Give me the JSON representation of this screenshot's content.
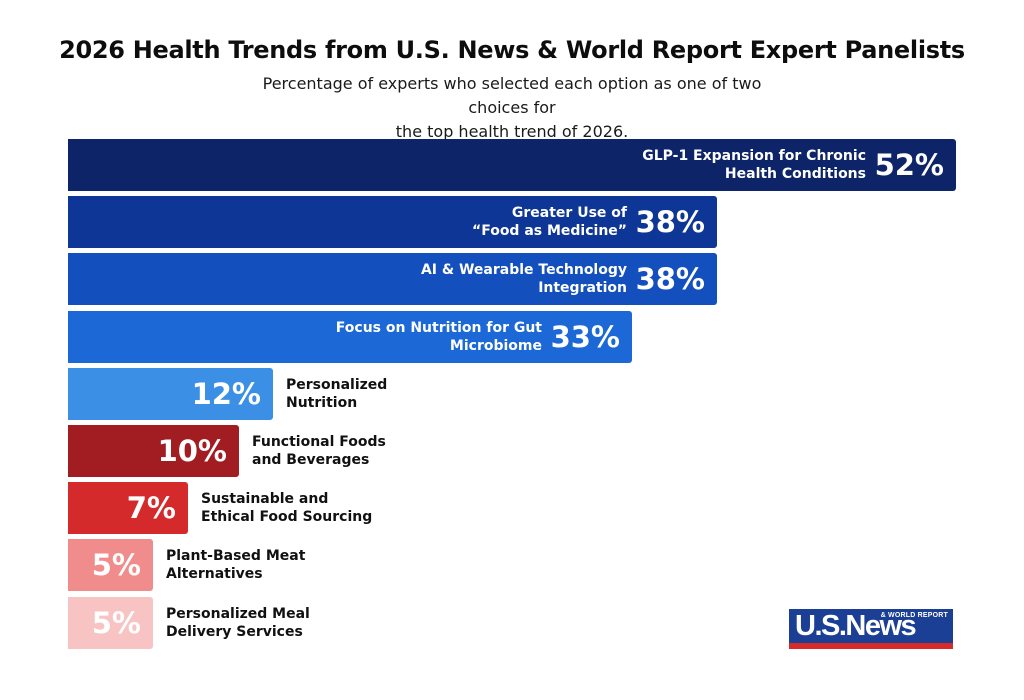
{
  "header": {
    "title": "2026 Health Trends from U.S. News & World Report Expert Panelists",
    "subtitle_line1": "Percentage of experts who selected each option as one of two choices for",
    "subtitle_line2": "the top health trend of 2026."
  },
  "chart_data": {
    "type": "bar",
    "orientation": "horizontal",
    "title": "2026 Health Trends from U.S. News & World Report Expert Panelists",
    "subtitle": "Percentage of experts who selected each option as one of two choices for the top health trend of 2026.",
    "categories": [
      "GLP-1 Expansion for Chronic Health Conditions",
      "Greater Use of “Food as Medicine”",
      "AI & Wearable Technology Integration",
      "Focus on Nutrition for Gut Microbiome",
      "Personalized Nutrition",
      "Functional Foods and Beverages",
      "Sustainable and Ethical Food Sourcing",
      "Plant-Based Meat Alternatives",
      "Personalized Meal Delivery Services"
    ],
    "label_lines": [
      [
        "GLP-1 Expansion for Chronic",
        "Health Conditions"
      ],
      [
        "Greater Use of",
        "“Food as Medicine”"
      ],
      [
        "AI & Wearable Technology",
        "Integration"
      ],
      [
        "Focus on Nutrition for Gut",
        "Microbiome"
      ],
      [
        "Personalized",
        "Nutrition"
      ],
      [
        "Functional Foods",
        "and Beverages"
      ],
      [
        "Sustainable and",
        "Ethical Food Sourcing"
      ],
      [
        "Plant-Based Meat",
        "Alternatives"
      ],
      [
        "Personalized Meal",
        "Delivery Services"
      ]
    ],
    "values": [
      52,
      38,
      38,
      33,
      12,
      10,
      7,
      5,
      5
    ],
    "value_labels": [
      "52%",
      "38%",
      "38%",
      "33%",
      "12%",
      "10%",
      "7%",
      "5%",
      "5%"
    ],
    "unit": "%",
    "colors": [
      "#0d2468",
      "#0e3696",
      "#1350bd",
      "#1b68d6",
      "#3b8fe5",
      "#a11d22",
      "#d42a2c",
      "#f18c8c",
      "#f8c3c3"
    ],
    "xlim": [
      0,
      52
    ],
    "grid": false,
    "legend": "none"
  },
  "logo": {
    "main_text": "U.S.News",
    "small_text": "& WORLD REPORT",
    "colors": {
      "blue": "#1b3f94",
      "red": "#d72a2a"
    }
  }
}
